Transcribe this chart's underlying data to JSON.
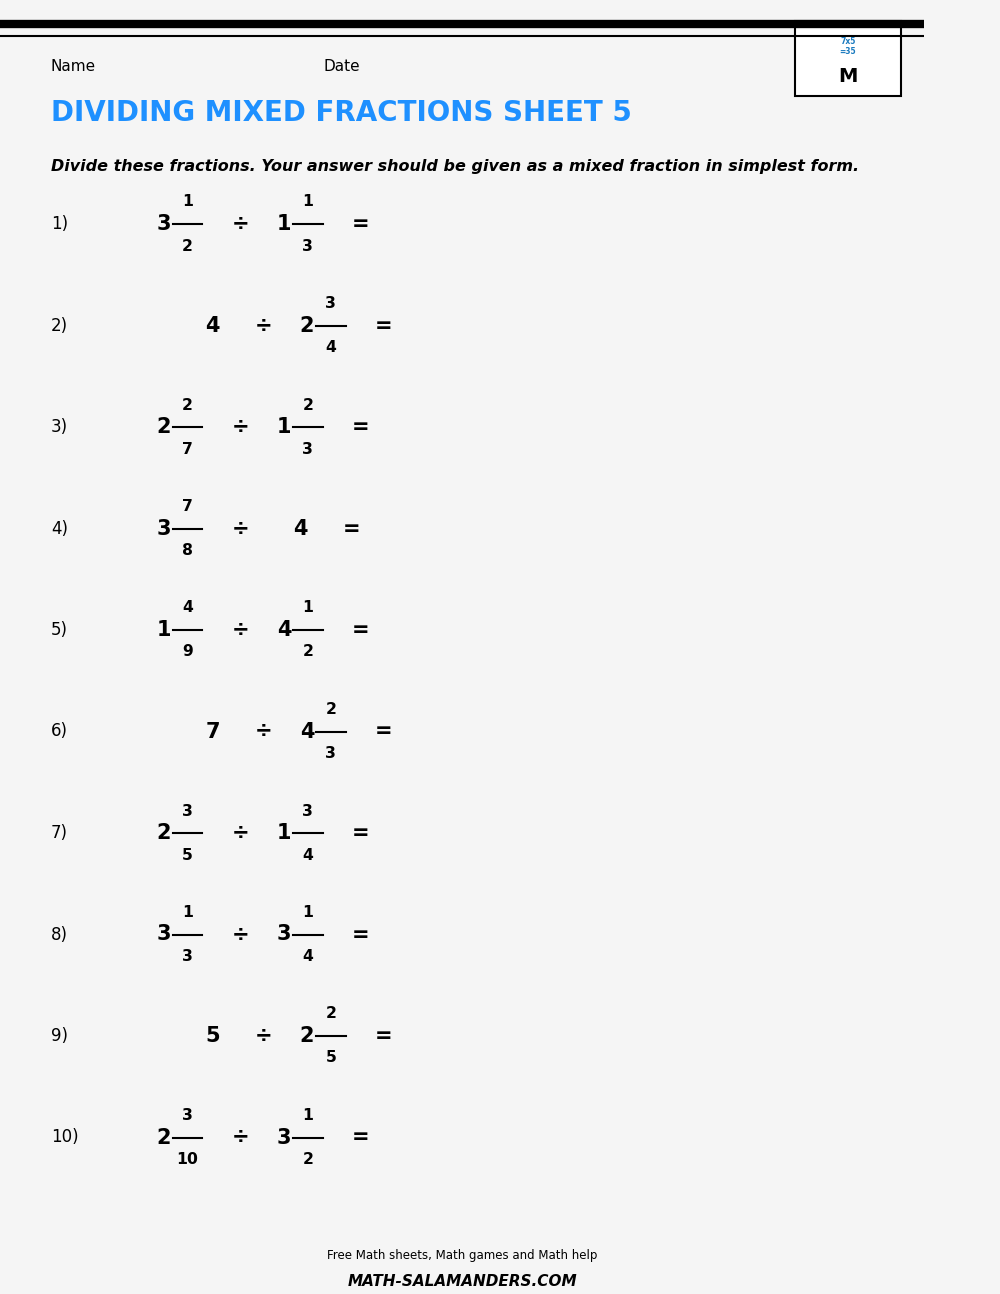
{
  "title": "DIVIDING MIXED FRACTIONS SHEET 5",
  "title_color": "#1E90FF",
  "header_name": "Name",
  "header_date": "Date",
  "instruction": "Divide these fractions. Your answer should be given as a mixed fraction in simplest form.",
  "background_color": "#F5F5F5",
  "problems": [
    {
      "num": "1)",
      "whole1": "3",
      "num1": "1",
      "den1": "2",
      "op": "÷",
      "whole2": "1",
      "num2": "1",
      "den2": "3"
    },
    {
      "num": "2)",
      "whole1": "4",
      "num1": null,
      "den1": null,
      "op": "÷",
      "whole2": "2",
      "num2": "3",
      "den2": "4"
    },
    {
      "num": "3)",
      "whole1": "2",
      "num1": "2",
      "den1": "7",
      "op": "÷",
      "whole2": "1",
      "num2": "2",
      "den2": "3"
    },
    {
      "num": "4)",
      "whole1": "3",
      "num1": "7",
      "den1": "8",
      "op": "÷",
      "whole2": "4",
      "num2": null,
      "den2": null
    },
    {
      "num": "5)",
      "whole1": "1",
      "num1": "4",
      "den1": "9",
      "op": "÷",
      "whole2": "4",
      "num2": "1",
      "den2": "2"
    },
    {
      "num": "6)",
      "whole1": "7",
      "num1": null,
      "den1": null,
      "op": "÷",
      "whole2": "4",
      "num2": "2",
      "den2": "3"
    },
    {
      "num": "7)",
      "whole1": "2",
      "num1": "3",
      "den1": "5",
      "op": "÷",
      "whole2": "1",
      "num2": "3",
      "den2": "4"
    },
    {
      "num": "8)",
      "whole1": "3",
      "num1": "1",
      "den1": "3",
      "op": "÷",
      "whole2": "3",
      "num2": "1",
      "den2": "4"
    },
    {
      "num": "9)",
      "whole1": "5",
      "num1": null,
      "den1": null,
      "op": "÷",
      "whole2": "2",
      "num2": "2",
      "den2": "5"
    },
    {
      "num": "10)",
      "whole1": "2",
      "num1": "3",
      "den1": "10",
      "op": "÷",
      "whole2": "3",
      "num2": "1",
      "den2": "2"
    }
  ]
}
